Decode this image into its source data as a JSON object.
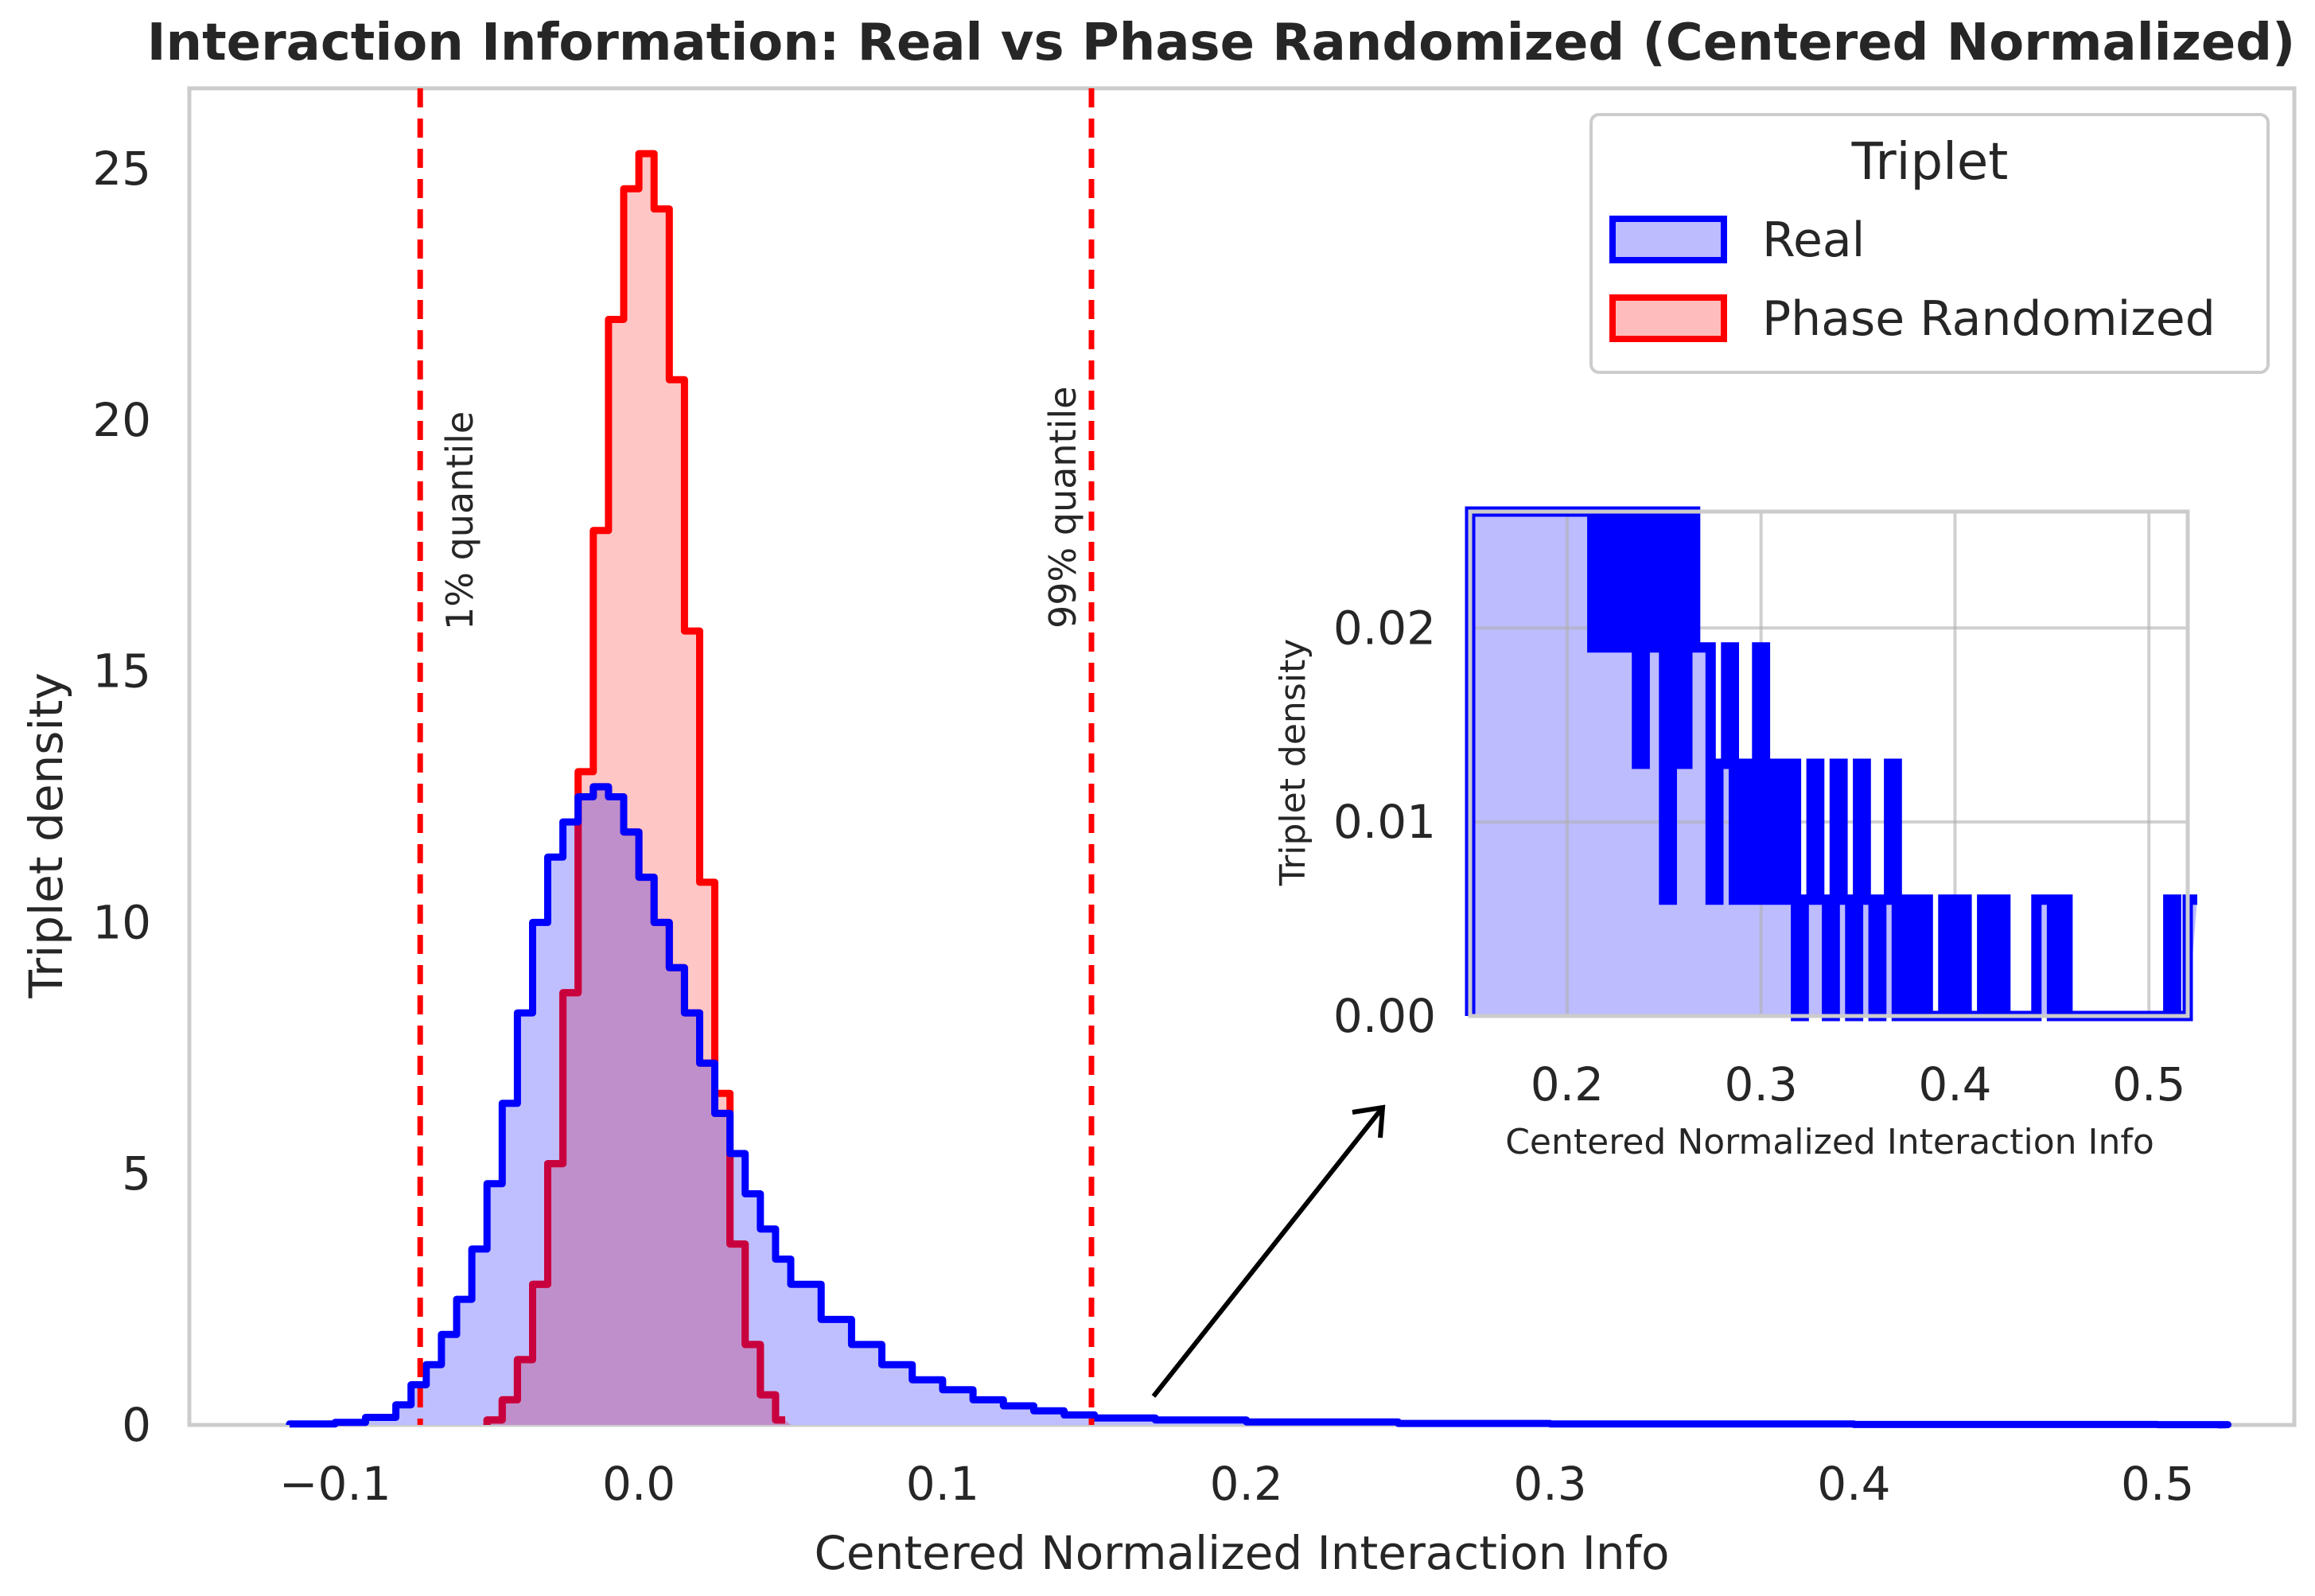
{
  "chart_data": {
    "type": "histogram",
    "title": "Interaction Information: Real vs Phase Randomized (Centered Normalized)",
    "xlabel": "Centered Normalized Interaction Info",
    "ylabel": "Triplet density",
    "xlim": [
      -0.148,
      0.545
    ],
    "ylim": [
      0,
      26.6
    ],
    "xticks": [
      -0.1,
      0.0,
      0.1,
      0.2,
      0.3,
      0.4,
      0.5
    ],
    "xtick_labels": [
      "−0.1",
      "0.0",
      "0.1",
      "0.2",
      "0.3",
      "0.4",
      "0.5"
    ],
    "yticks": [
      0,
      5,
      10,
      15,
      20,
      25
    ],
    "ytick_labels": [
      "0",
      "5",
      "10",
      "15",
      "20",
      "25"
    ],
    "grid": false,
    "legend": {
      "title": "Triplet",
      "placement": "top-right",
      "entries": [
        "Real",
        "Phase Randomized"
      ]
    },
    "colors": {
      "real_line": "#0000ff",
      "real_fill": "#bcbcff",
      "phase_line": "#ff0000",
      "phase_fill": "#ffbcbc",
      "overlap_line": "#c8003e",
      "quantile_line": "#ff0000",
      "frame": "#cccccc",
      "text": "#262626"
    },
    "series": [
      {
        "name": "Real",
        "x": [
          -0.115,
          -0.1,
          -0.09,
          -0.08,
          -0.075,
          -0.07,
          -0.065,
          -0.06,
          -0.055,
          -0.05,
          -0.045,
          -0.04,
          -0.035,
          -0.03,
          -0.025,
          -0.02,
          -0.015,
          -0.01,
          -0.005,
          0.0,
          0.005,
          0.01,
          0.015,
          0.02,
          0.025,
          0.03,
          0.035,
          0.04,
          0.045,
          0.05,
          0.06,
          0.07,
          0.08,
          0.09,
          0.1,
          0.11,
          0.12,
          0.13,
          0.14,
          0.15,
          0.17,
          0.2,
          0.25,
          0.3,
          0.4,
          0.5,
          0.52
        ],
        "values": [
          0.02,
          0.05,
          0.15,
          0.4,
          0.8,
          1.2,
          1.8,
          2.5,
          3.5,
          4.8,
          6.4,
          8.2,
          10.0,
          11.3,
          12.0,
          12.5,
          12.7,
          12.5,
          11.8,
          10.9,
          10.0,
          9.1,
          8.2,
          7.2,
          6.2,
          5.4,
          4.6,
          3.9,
          3.3,
          2.8,
          2.1,
          1.6,
          1.2,
          0.9,
          0.7,
          0.5,
          0.38,
          0.28,
          0.2,
          0.14,
          0.1,
          0.06,
          0.03,
          0.02,
          0.01,
          0.006,
          0.006
        ]
      },
      {
        "name": "Phase Randomized",
        "x": [
          -0.05,
          -0.045,
          -0.04,
          -0.035,
          -0.03,
          -0.025,
          -0.02,
          -0.015,
          -0.01,
          -0.005,
          0.0,
          0.005,
          0.01,
          0.015,
          0.02,
          0.025,
          0.03,
          0.035,
          0.04,
          0.045
        ],
        "values": [
          0.1,
          0.5,
          1.3,
          2.8,
          5.2,
          8.6,
          13.0,
          17.8,
          22.0,
          24.6,
          25.3,
          24.2,
          20.8,
          15.8,
          10.8,
          6.6,
          3.6,
          1.6,
          0.6,
          0.1
        ]
      }
    ],
    "annotations": [
      {
        "text": "1% quantile",
        "x": -0.072
      },
      {
        "text": "99% quantile",
        "x": 0.149
      }
    ],
    "inset": {
      "xlabel": "Centered Normalized Interaction Info",
      "ylabel": "Triplet density",
      "xlim": [
        0.15,
        0.52
      ],
      "ylim": [
        0,
        0.026
      ],
      "xticks": [
        0.2,
        0.3,
        0.4,
        0.5
      ],
      "xtick_labels": [
        "0.2",
        "0.3",
        "0.4",
        "0.5"
      ],
      "yticks": [
        0.0,
        0.01,
        0.02
      ],
      "ytick_labels": [
        "0.00",
        "0.01",
        "0.02"
      ],
      "grid": true,
      "note": "zoomed tail of Real series",
      "x": [
        0.15,
        0.21,
        0.213,
        0.216,
        0.22,
        0.224,
        0.228,
        0.232,
        0.236,
        0.24,
        0.243,
        0.246,
        0.25,
        0.254,
        0.258,
        0.262,
        0.266,
        0.27,
        0.274,
        0.278,
        0.282,
        0.286,
        0.29,
        0.294,
        0.298,
        0.302,
        0.306,
        0.31,
        0.314,
        0.318,
        0.322,
        0.326,
        0.33,
        0.334,
        0.338,
        0.342,
        0.346,
        0.35,
        0.354,
        0.358,
        0.362,
        0.366,
        0.37,
        0.374,
        0.378,
        0.382,
        0.386,
        0.39,
        0.394,
        0.398,
        0.402,
        0.406,
        0.41,
        0.414,
        0.418,
        0.422,
        0.426,
        0.43,
        0.434,
        0.438,
        0.442,
        0.446,
        0.45,
        0.454,
        0.458,
        0.462,
        0.466,
        0.47,
        0.474,
        0.478,
        0.482,
        0.486,
        0.49,
        0.494,
        0.498,
        0.502,
        0.506,
        0.51,
        0.514,
        0.52
      ],
      "values": [
        0.026,
        0.026,
        0.019,
        0.026,
        0.019,
        0.026,
        0.019,
        0.026,
        0.013,
        0.026,
        0.019,
        0.026,
        0.006,
        0.026,
        0.013,
        0.026,
        0.019,
        0.019,
        0.006,
        0.013,
        0.019,
        0.006,
        0.013,
        0.006,
        0.019,
        0.006,
        0.013,
        0.006,
        0.013,
        0.0,
        0.006,
        0.013,
        0.006,
        0.0,
        0.013,
        0.006,
        0.0,
        0.013,
        0.006,
        0.0,
        0.006,
        0.013,
        0.0,
        0.006,
        0.0,
        0.006,
        0.0,
        0.0,
        0.006,
        0.0,
        0.006,
        0.0,
        0.0,
        0.006,
        0.0,
        0.006,
        0.0,
        0.0,
        0.0,
        0.0,
        0.006,
        0.006,
        0.0,
        0.006,
        0.0,
        0.0,
        0.0,
        0.0,
        0.0,
        0.0,
        0.0,
        0.0,
        0.0,
        0.0,
        0.0,
        0.0,
        0.0,
        0.006,
        0.0,
        0.006
      ]
    }
  }
}
